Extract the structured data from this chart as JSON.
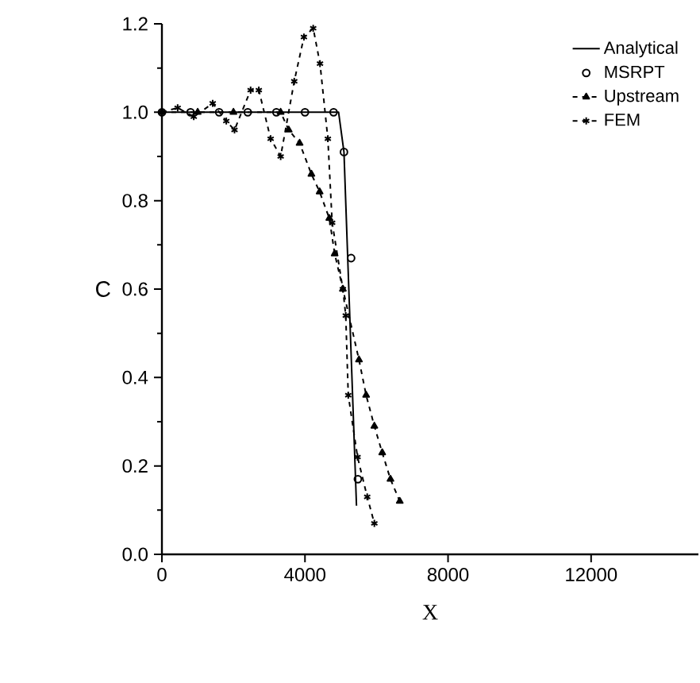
{
  "chart_data": {
    "type": "line",
    "xlabel": "X",
    "ylabel": "C",
    "xlim": [
      0,
      15000
    ],
    "xticks": [
      0,
      4000,
      8000,
      12000
    ],
    "ylim": [
      0,
      1.2
    ],
    "yticks": [
      {
        "value": 0,
        "label": "0.0"
      },
      0.2,
      0.4,
      0.6,
      0.8,
      {
        "value": 1,
        "label": "1.0"
      },
      1.2
    ],
    "legend": "top right",
    "series": [
      {
        "name": "Analytical",
        "color": "#000000",
        "marker": "none",
        "line_style": "solid",
        "x": [
          0,
          4940,
          5090,
          5440
        ],
        "values": [
          1.0,
          1.0,
          0.91,
          0.11
        ]
      },
      {
        "name": "MSRPT",
        "type": "scatter",
        "color": "#000000",
        "marker": "circle",
        "x": [
          0,
          800,
          1600,
          2400,
          3200,
          4000,
          4800,
          5090,
          5290,
          5480
        ],
        "values": [
          1.0,
          1.0,
          1.0,
          1.0,
          1.0,
          1.0,
          1.0,
          0.91,
          0.67,
          0.17
        ]
      },
      {
        "name": "Upstream",
        "color": "#000000",
        "marker": "triangle",
        "line_style": "dashed",
        "x": [
          0,
          1000,
          2000,
          3320,
          3545,
          3850,
          4180,
          4410,
          4680,
          4830,
          5060,
          5510,
          5710,
          5940,
          6160,
          6390,
          6650
        ],
        "values": [
          1.0,
          1.0,
          1.0,
          1.0,
          0.96,
          0.93,
          0.86,
          0.82,
          0.76,
          0.68,
          0.6,
          0.44,
          0.36,
          0.29,
          0.23,
          0.17,
          0.12
        ]
      },
      {
        "name": "FEM",
        "color": "#000000",
        "marker": "cross",
        "line_style": "dashed",
        "x": [
          0,
          440,
          890,
          1420,
          1800,
          2030,
          2480,
          2710,
          3040,
          3320,
          3700,
          3970,
          4230,
          4420,
          4640,
          4760,
          5060,
          5140,
          5210,
          5470,
          5740,
          5940
        ],
        "values": [
          1.0,
          1.01,
          0.99,
          1.02,
          0.98,
          0.96,
          1.05,
          1.05,
          0.94,
          0.9,
          1.07,
          1.17,
          1.19,
          1.11,
          0.94,
          0.75,
          0.6,
          0.54,
          0.36,
          0.22,
          0.13,
          0.07
        ]
      }
    ]
  }
}
